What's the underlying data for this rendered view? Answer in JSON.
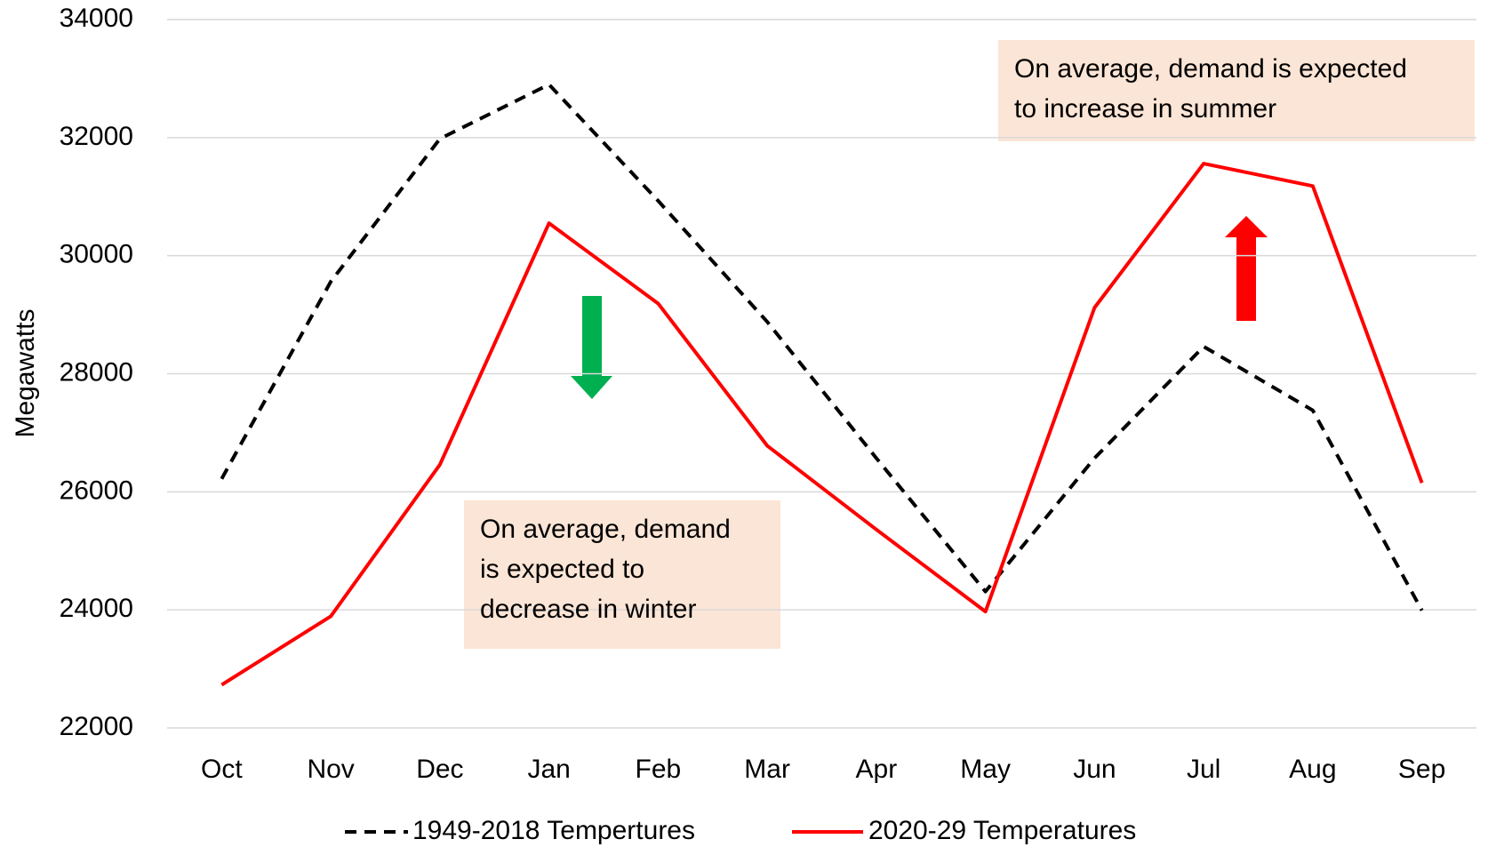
{
  "chart_data": {
    "type": "line",
    "y_label": "Megawatts",
    "categories": [
      "Oct",
      "Nov",
      "Dec",
      "Jan",
      "Feb",
      "Mar",
      "Apr",
      "May",
      "Jun",
      "Jul",
      "Aug",
      "Sep"
    ],
    "series": [
      {
        "name": "1949-2018 Tempertures",
        "color": "#000000",
        "dashed": true,
        "values": [
          26220,
          29560,
          31980,
          32900,
          30930,
          28880,
          26570,
          24310,
          26570,
          28460,
          27380,
          23990
        ]
      },
      {
        "name": "2020-29 Temperatures",
        "color": "#ff0000",
        "dashed": false,
        "values": [
          22730,
          23890,
          26460,
          30550,
          29190,
          26780,
          25360,
          23970,
          29120,
          31560,
          31180,
          26150
        ]
      }
    ],
    "ylim": [
      22000,
      34000
    ],
    "yticks": [
      22000,
      24000,
      26000,
      28000,
      30000,
      32000,
      34000
    ],
    "grid": true,
    "legend": "bottom",
    "annotations": [
      {
        "lines": [
          "On average, demand",
          "is expected to",
          "decrease in winter"
        ]
      },
      {
        "lines": [
          "On average, demand is expected",
          "to increase in summer"
        ]
      }
    ]
  }
}
